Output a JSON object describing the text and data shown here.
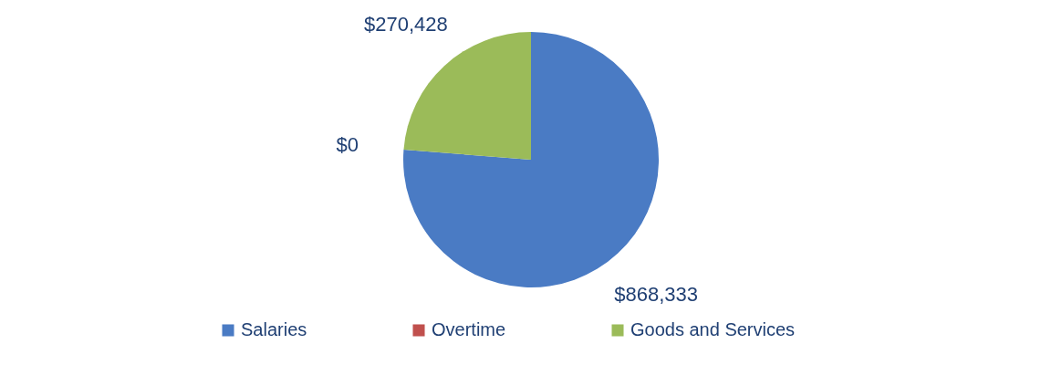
{
  "chart_data": {
    "type": "pie",
    "categories": [
      "Salaries",
      "Overtime",
      "Goods and Services"
    ],
    "values": [
      868333,
      0,
      270428
    ],
    "colors": [
      "#4a7bc4",
      "#c0504d",
      "#9bbb59"
    ],
    "value_labels": [
      "$868,333",
      "$0",
      "$270,428"
    ],
    "legend": "bottom"
  }
}
